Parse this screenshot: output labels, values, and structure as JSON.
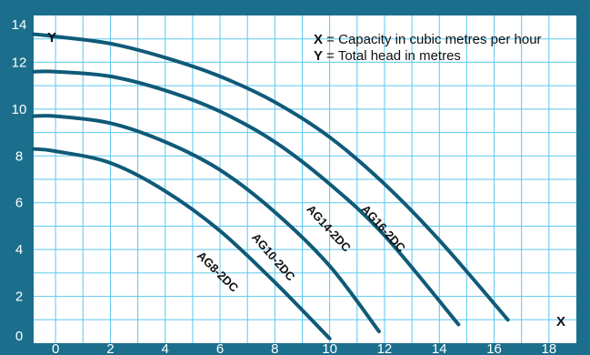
{
  "chart_data": {
    "type": "line",
    "title": "",
    "xlabel": "X",
    "ylabel": "Y",
    "xlim": [
      -0.8,
      19.0
    ],
    "ylim": [
      0,
      14
    ],
    "x_ticks": [
      "0",
      "2",
      "4",
      "6",
      "8",
      "10",
      "12",
      "14",
      "16",
      "18"
    ],
    "y_ticks": [
      "0",
      "2",
      "4",
      "6",
      "8",
      "10",
      "12",
      "14"
    ],
    "grid": true,
    "legend": [
      {
        "key": "X",
        "text": " = Capacity in cubic metres per hour"
      },
      {
        "key": "Y",
        "text": " = Total head in metres"
      }
    ],
    "series": [
      {
        "name": "AG8-2DC",
        "x": [
          -0.8,
          0,
          2,
          4,
          6,
          8,
          10
        ],
        "y": [
          8.3,
          8.2,
          7.7,
          6.5,
          4.8,
          2.6,
          0.2
        ]
      },
      {
        "name": "AG10-2DC",
        "x": [
          -0.8,
          0,
          2,
          4,
          6,
          8,
          10,
          11.8
        ],
        "y": [
          9.7,
          9.7,
          9.4,
          8.6,
          7.4,
          5.6,
          3.3,
          0.5
        ]
      },
      {
        "name": "AG14-2DC",
        "x": [
          -0.8,
          0,
          2,
          4,
          6,
          8,
          10,
          12,
          14.7
        ],
        "y": [
          11.6,
          11.6,
          11.4,
          10.8,
          9.9,
          8.6,
          6.8,
          4.6,
          0.8
        ]
      },
      {
        "name": "AG16-2DC",
        "x": [
          -0.8,
          0,
          2,
          4,
          6,
          8,
          10,
          12,
          14,
          16.5
        ],
        "y": [
          13.2,
          13.1,
          12.8,
          12.2,
          11.4,
          10.3,
          8.8,
          6.8,
          4.4,
          1.0
        ]
      }
    ]
  },
  "colors": {
    "background": "#1b6f8c",
    "plot": "#ffffff",
    "grid": "#5bc7ee",
    "curve": "#0f5a78"
  }
}
